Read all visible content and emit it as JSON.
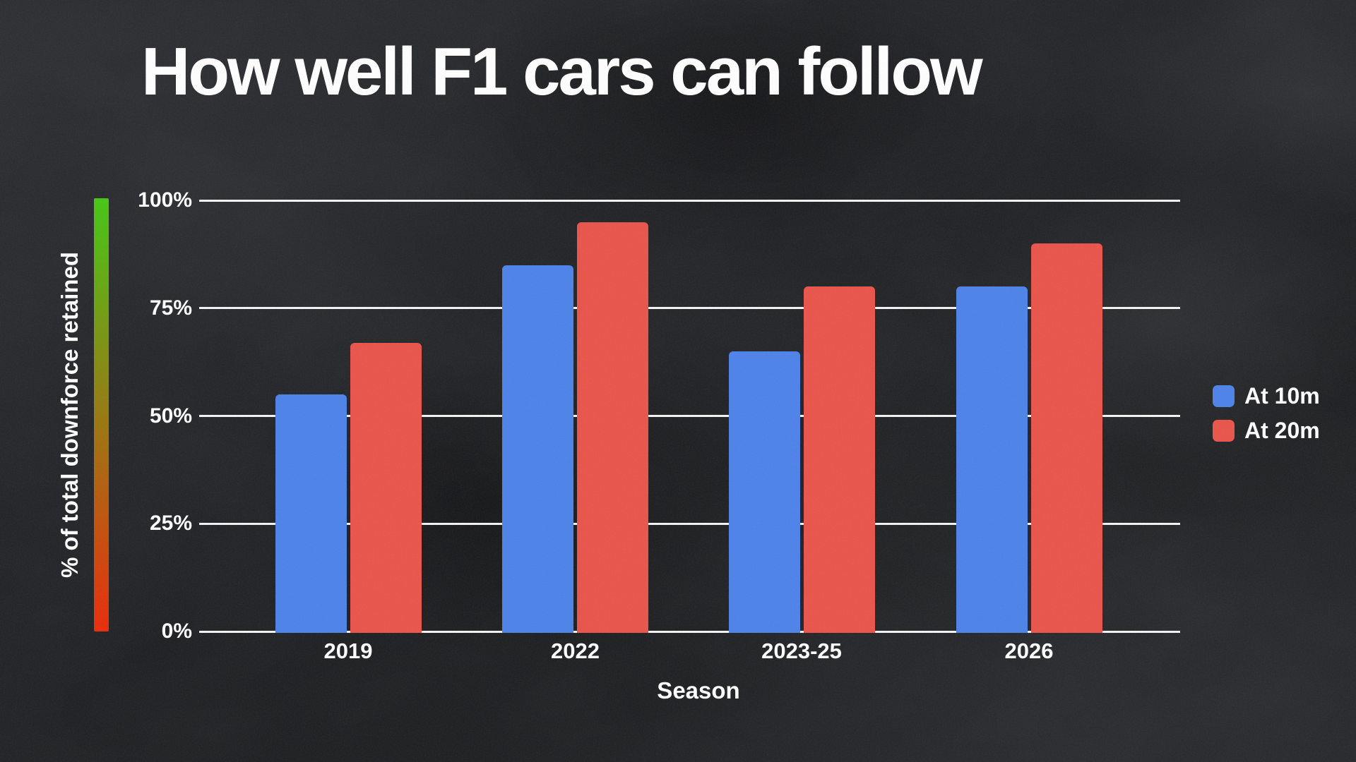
{
  "title": "How well F1 cars can follow",
  "x_axis": {
    "label": "Season"
  },
  "y_axis": {
    "label": "% of total downforce retained"
  },
  "legend": {
    "items": [
      {
        "label": "At 10m",
        "swatch": "#4d82e8"
      },
      {
        "label": "At 20m",
        "swatch": "#e9544a"
      }
    ]
  },
  "colors": {
    "background": "#202124",
    "text": "#ffffff",
    "gridline": "#f5f5f5",
    "bar_blue": "#4d82e8",
    "bar_red": "#e9544a",
    "gradient_top": "#45c614",
    "gradient_bottom": "#ea2b09"
  },
  "chart_data": {
    "type": "bar",
    "categories": [
      "2019",
      "2022",
      "2023-25",
      "2026"
    ],
    "series": [
      {
        "name": "At 10m",
        "color": "#4d82e8",
        "values": [
          55,
          85,
          65,
          80
        ]
      },
      {
        "name": "At 20m",
        "color": "#e9544a",
        "values": [
          67,
          95,
          80,
          90
        ]
      }
    ],
    "title": "How well F1 cars can follow",
    "xlabel": "Season",
    "ylabel": "% of total downforce retained",
    "ylim": [
      0,
      100
    ],
    "yticks": [
      0,
      25,
      50,
      75,
      100
    ],
    "ytick_suffix": "%",
    "grid": true,
    "legend_position": "right",
    "y_gradient_scale": {
      "top_color": "#45c614",
      "bottom_color": "#ea2b09"
    }
  }
}
